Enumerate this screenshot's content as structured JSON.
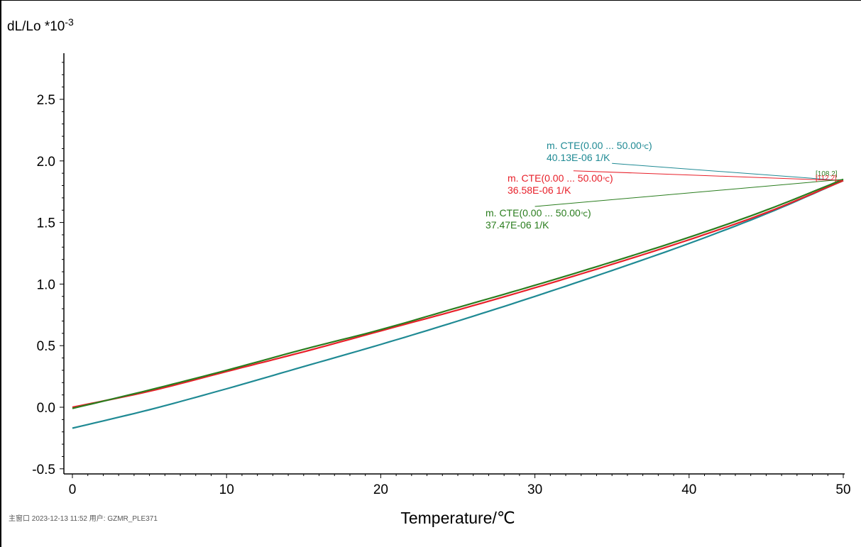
{
  "chart_data": {
    "type": "line",
    "ylabel": "dL/Lo *10",
    "ylabel_exponent": "-3",
    "xlabel": "Temperature/℃",
    "xlim": [
      0,
      50
    ],
    "ylim": [
      -0.55,
      2.85
    ],
    "xticks": [
      "0",
      "10",
      "20",
      "30",
      "40",
      "50"
    ],
    "yticks": [
      "-0.5",
      "0.0",
      "0.5",
      "1.0",
      "1.5",
      "2.0",
      "2.5"
    ],
    "grid": false,
    "series": [
      {
        "color": "#1f8a94",
        "x": [
          0,
          5,
          10,
          15,
          20,
          25,
          30,
          35,
          40,
          45,
          50
        ],
        "y": [
          -0.17,
          -0.02,
          0.15,
          0.33,
          0.51,
          0.7,
          0.9,
          1.11,
          1.33,
          1.57,
          1.84
        ]
      },
      {
        "color": "#e8202a",
        "x": [
          0,
          5,
          10,
          15,
          20,
          25,
          30,
          35,
          40,
          45,
          50
        ],
        "y": [
          0.0,
          0.13,
          0.29,
          0.45,
          0.62,
          0.79,
          0.97,
          1.16,
          1.36,
          1.58,
          1.84
        ]
      },
      {
        "color": "#2a7d1e",
        "x": [
          0,
          5,
          10,
          15,
          20,
          25,
          30,
          35,
          40,
          45,
          50
        ],
        "y": [
          -0.01,
          0.14,
          0.3,
          0.47,
          0.63,
          0.81,
          0.99,
          1.18,
          1.38,
          1.6,
          1.85
        ]
      }
    ],
    "annotations": [
      {
        "line1": "m. CTE(0.00 ... 50.00",
        "unit_glyph": "℃",
        "line1_end": ")",
        "line2": "40.13E-06 1/K",
        "color": "#1f8a94",
        "leader_from": [
          35,
          1.98
        ],
        "leader_to": [
          50,
          1.84
        ]
      },
      {
        "line1": "m. CTE(0.00 ... 50.00",
        "unit_glyph": "℃",
        "line1_end": ")",
        "line2": "36.58E-06 1/K",
        "color": "#e8202a",
        "leader_from": [
          32.5,
          1.92
        ],
        "leader_to": [
          50,
          1.84
        ]
      },
      {
        "line1": "m. CTE(0.00 ... 50.00",
        "unit_glyph": "℃",
        "line1_end": ")",
        "line2": "37.47E-06 1/K",
        "color": "#2a7d1e",
        "leader_from": [
          30,
          1.63
        ],
        "leader_to": [
          50,
          1.85
        ]
      }
    ],
    "end_labels": [
      {
        "text": "[108.2]",
        "color": "#2a7d1e"
      },
      {
        "text": "[112.2]",
        "color": "#e8202a"
      }
    ],
    "footer": "主窗口    2023-12-13 11:52    用户: GZMR_PLE371"
  }
}
